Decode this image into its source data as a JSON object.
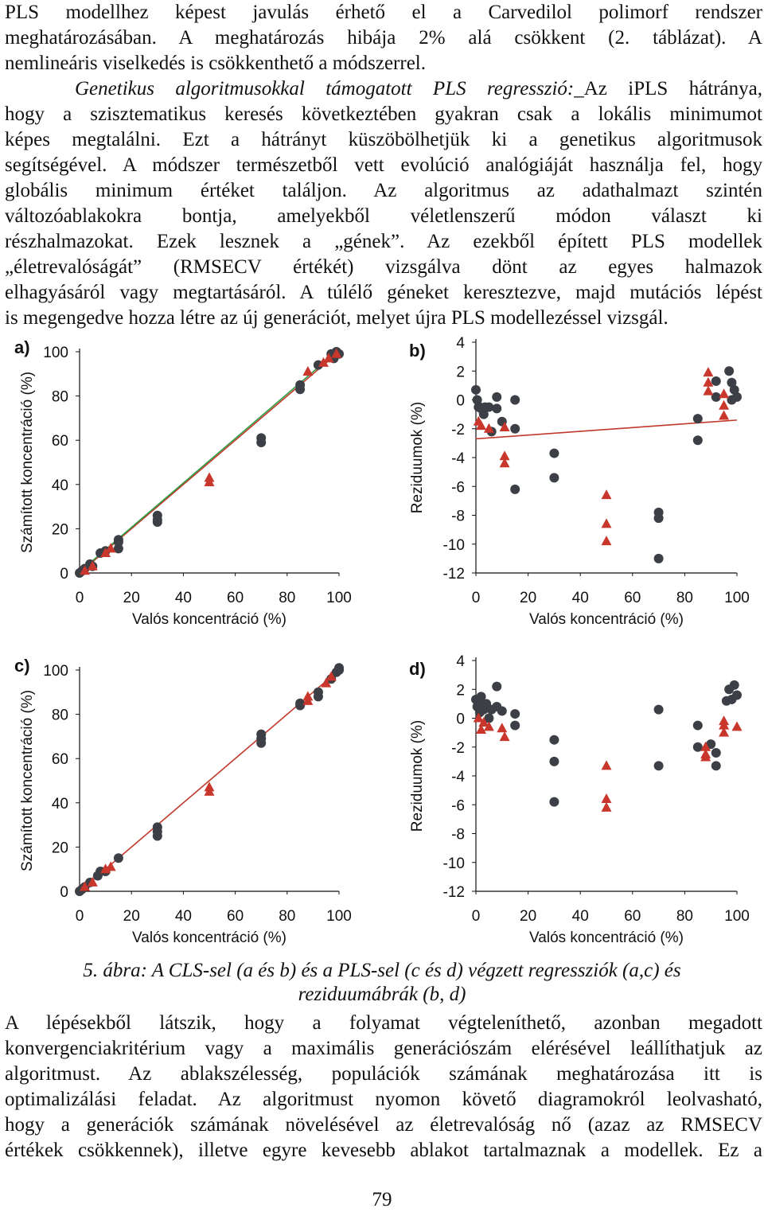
{
  "text_top": {
    "line1": "PLS modellhez képest javulás érhető el a Carvedilol polimorf rendszer",
    "line2": "meghatározásában. A meghatározás hibája 2% alá csökkent (2. táblázat). A",
    "line3": "nemlineáris viselkedés is csökkenthető a módszerrel.",
    "para2_lead": "Genetikus algoritmusokkal támogatott PLS regresszió:",
    "para2_lead_rest": "_Az iPLS hátránya,",
    "para2_lines": [
      "hogy a szisztematikus keresés következtében gyakran csak a lokális minimumot",
      "képes megtalálni. Ezt a hátrányt küszöbölhetjük ki a genetikus algoritmusok",
      "segítségével. A módszer természetből vett evolúció analógiáját használja fel, hogy",
      "globális minimum értéket találjon. Az algoritmus az adathalmazt szintén",
      "változóablakokra bontja, amelyekből véletlenszerű módon választ ki",
      "részhalmazokat. Ezek lesznek a „gének”. Az ezekből épített PLS modellek",
      "„életrevalóságát” (RMSECV értékét) vizsgálva dönt az egyes halmazok",
      "elhagyásáról vagy megtartásáról. A túlélő géneket keresztezve, majd mutációs lépést",
      "is megengedve hozza létre az új generációt, melyet újra PLS modellezéssel vizsgál."
    ]
  },
  "caption": {
    "line1": "5. ábra: A CLS-sel (a és b) és a PLS-sel (c és d) végzett regressziók (a,c) és",
    "line2": "reziduumábrák (b, d)"
  },
  "text_bottom": [
    "A lépésekből látszik, hogy a folyamat végteleníthető, azonban megadott",
    "konvergenciakritérium vagy a maximális generációszám elérésével leállíthatjuk az",
    "algoritmust. Az ablakszélesség, populációk számának meghatározása itt is",
    "optimalizálási feladat. Az algoritmust nyomon követő diagramokról leolvasható,",
    "hogy a generációk számának növelésével az életrevalóság nő (azaz az RMSECV",
    "értékek csökkennek), illetve egyre kevesebb ablakot tartalmaznak a modellek. Ez a"
  ],
  "page_number": "79",
  "colors": {
    "circle": "#3c3f45",
    "triangle": "#c9372c",
    "fit_red": "#c0392b",
    "fit_green": "#2e9e46"
  },
  "chart_data": [
    {
      "panel": "a)",
      "type": "scatter",
      "xlabel": "Valós koncentráció (%)",
      "ylabel": "Számított koncentráció (%)",
      "xlim": [
        0,
        100
      ],
      "ylim": [
        0,
        100
      ],
      "xticks": [
        "0",
        "20",
        "40",
        "60",
        "80",
        "100"
      ],
      "yticks": [
        "0",
        "20",
        "40",
        "60",
        "80",
        "100"
      ],
      "series": [
        {
          "name": "circles",
          "marker": "circle",
          "points": [
            [
              0,
              0
            ],
            [
              1,
              1
            ],
            [
              2,
              2
            ],
            [
              4,
              4
            ],
            [
              5,
              3
            ],
            [
              8,
              9
            ],
            [
              10,
              10
            ],
            [
              15,
              15
            ],
            [
              15,
              11
            ],
            [
              15,
              14
            ],
            [
              30,
              26
            ],
            [
              30,
              23
            ],
            [
              30,
              24
            ],
            [
              70,
              61
            ],
            [
              70,
              59
            ],
            [
              85,
              83
            ],
            [
              85,
              85
            ],
            [
              92,
              94
            ],
            [
              97,
              99
            ],
            [
              99,
              100
            ],
            [
              100,
              99
            ],
            [
              98,
              97
            ]
          ]
        },
        {
          "name": "triangles",
          "marker": "triangle",
          "points": [
            [
              2,
              1
            ],
            [
              5,
              3
            ],
            [
              10,
              9
            ],
            [
              12,
              11
            ],
            [
              50,
              43
            ],
            [
              50,
              41
            ],
            [
              88,
              91
            ],
            [
              94,
              95
            ],
            [
              96,
              97
            ],
            [
              99,
              99
            ]
          ]
        }
      ],
      "fits": [
        {
          "name": "red",
          "from": [
            0,
            0
          ],
          "to": [
            100,
            100
          ]
        },
        {
          "name": "green",
          "from": [
            0,
            0.5
          ],
          "to": [
            100,
            101
          ]
        }
      ]
    },
    {
      "panel": "b)",
      "type": "scatter",
      "xlabel": "Valós koncentráció (%)",
      "ylabel": "Reziduumok (%)",
      "xlim": [
        0,
        100
      ],
      "ylim": [
        -12,
        4
      ],
      "xticks": [
        "0",
        "20",
        "40",
        "60",
        "80",
        "100"
      ],
      "yticks": [
        "4",
        "2",
        "0",
        "-2",
        "-4",
        "-6",
        "-8",
        "-10",
        "-12"
      ],
      "series": [
        {
          "name": "circles",
          "marker": "circle",
          "points": [
            [
              0,
              0.7
            ],
            [
              0.5,
              0
            ],
            [
              1,
              -0.5
            ],
            [
              1.5,
              -0.5
            ],
            [
              2,
              -0.6
            ],
            [
              3,
              -1
            ],
            [
              3.5,
              -0.5
            ],
            [
              5,
              -0.5
            ],
            [
              6,
              -2.2
            ],
            [
              8,
              0.2
            ],
            [
              8,
              -0.6
            ],
            [
              10,
              -1.5
            ],
            [
              15,
              -2
            ],
            [
              15,
              0
            ],
            [
              15,
              -6.2
            ],
            [
              30,
              -3.7
            ],
            [
              30,
              -5.4
            ],
            [
              70,
              -7.8
            ],
            [
              70,
              -8.2
            ],
            [
              70,
              -11
            ],
            [
              85,
              -1.3
            ],
            [
              85,
              -2.8
            ],
            [
              92,
              0.2
            ],
            [
              92,
              1.3
            ],
            [
              97,
              2
            ],
            [
              98,
              1.2
            ],
            [
              99,
              0.7
            ],
            [
              100,
              0.2
            ],
            [
              98,
              0
            ]
          ]
        },
        {
          "name": "triangles",
          "marker": "triangle",
          "points": [
            [
              1,
              -1.5
            ],
            [
              2,
              -1.8
            ],
            [
              5,
              -2
            ],
            [
              11,
              -1.9
            ],
            [
              11,
              -3.9
            ],
            [
              11,
              -4.4
            ],
            [
              50,
              -6.6
            ],
            [
              50,
              -8.6
            ],
            [
              50,
              -9.8
            ],
            [
              89,
              1.9
            ],
            [
              89,
              1.2
            ],
            [
              89,
              0.6
            ],
            [
              95,
              0.4
            ],
            [
              95,
              -0.4
            ],
            [
              95,
              -1.1
            ]
          ]
        }
      ],
      "fits": [
        {
          "name": "red",
          "from": [
            0,
            -2.7
          ],
          "to": [
            100,
            -1.4
          ]
        }
      ]
    },
    {
      "panel": "c)",
      "type": "scatter",
      "xlabel": "Valós koncentráció (%)",
      "ylabel": "Számított koncentráció (%)",
      "xlim": [
        0,
        100
      ],
      "ylim": [
        0,
        100
      ],
      "xticks": [
        "0",
        "20",
        "40",
        "60",
        "80",
        "100"
      ],
      "yticks": [
        "0",
        "20",
        "40",
        "60",
        "80",
        "100"
      ],
      "series": [
        {
          "name": "circles",
          "marker": "circle",
          "points": [
            [
              0,
              0
            ],
            [
              1,
              1
            ],
            [
              2,
              2
            ],
            [
              4,
              4
            ],
            [
              7,
              7
            ],
            [
              8,
              9
            ],
            [
              10,
              9
            ],
            [
              15,
              15
            ],
            [
              30,
              29
            ],
            [
              30,
              27
            ],
            [
              30,
              25
            ],
            [
              70,
              71
            ],
            [
              70,
              69
            ],
            [
              70,
              67
            ],
            [
              85,
              84
            ],
            [
              85,
              85
            ],
            [
              92,
              90
            ],
            [
              92,
              88
            ],
            [
              97,
              96
            ],
            [
              99,
              99
            ],
            [
              100,
              100
            ],
            [
              100,
              101
            ]
          ]
        },
        {
          "name": "triangles",
          "marker": "triangle",
          "points": [
            [
              2,
              2
            ],
            [
              5,
              4
            ],
            [
              10,
              10
            ],
            [
              12,
              11
            ],
            [
              50,
              47
            ],
            [
              50,
              45
            ],
            [
              88,
              86
            ],
            [
              88,
              88
            ],
            [
              95,
              94
            ],
            [
              97,
              97
            ]
          ]
        }
      ],
      "fits": [
        {
          "name": "red",
          "from": [
            0,
            0
          ],
          "to": [
            100,
            100
          ]
        }
      ]
    },
    {
      "panel": "d)",
      "type": "scatter",
      "xlabel": "Valós koncentráció (%)",
      "ylabel": "Reziduumok (%)",
      "xlim": [
        0,
        100
      ],
      "ylim": [
        -12,
        4
      ],
      "xticks": [
        "0",
        "20",
        "40",
        "60",
        "80",
        "100"
      ],
      "yticks": [
        "4",
        "2",
        "0",
        "-2",
        "-4",
        "-6",
        "-8",
        "-10",
        "-12"
      ],
      "series": [
        {
          "name": "circles",
          "marker": "circle",
          "points": [
            [
              0,
              1.3
            ],
            [
              0.5,
              0.8
            ],
            [
              1,
              1
            ],
            [
              1.5,
              0.4
            ],
            [
              2,
              1.5
            ],
            [
              3,
              0.6
            ],
            [
              4,
              1
            ],
            [
              5,
              0
            ],
            [
              6,
              0.6
            ],
            [
              8,
              2.2
            ],
            [
              8,
              0.8
            ],
            [
              10,
              0.5
            ],
            [
              15,
              0.3
            ],
            [
              15,
              -0.5
            ],
            [
              30,
              -1.5
            ],
            [
              30,
              -3
            ],
            [
              30,
              -5.8
            ],
            [
              70,
              0.6
            ],
            [
              70,
              -3.3
            ],
            [
              85,
              -0.5
            ],
            [
              85,
              -2
            ],
            [
              90,
              -1.8
            ],
            [
              92,
              -2.4
            ],
            [
              92,
              -3.3
            ],
            [
              97,
              2
            ],
            [
              98,
              1.3
            ],
            [
              99,
              2.3
            ],
            [
              100,
              1.6
            ],
            [
              96,
              1.2
            ]
          ]
        },
        {
          "name": "triangles",
          "marker": "triangle",
          "points": [
            [
              1,
              0
            ],
            [
              2,
              -0.8
            ],
            [
              3,
              -0.3
            ],
            [
              5,
              -0.6
            ],
            [
              10,
              -0.7
            ],
            [
              11,
              -1.3
            ],
            [
              50,
              -3.3
            ],
            [
              50,
              -5.6
            ],
            [
              50,
              -6.2
            ],
            [
              88,
              -2
            ],
            [
              88,
              -2.5
            ],
            [
              88,
              -2.7
            ],
            [
              95,
              -0.2
            ],
            [
              95,
              -0.5
            ],
            [
              95,
              -1
            ],
            [
              100,
              -0.6
            ]
          ]
        }
      ],
      "fits": []
    }
  ]
}
